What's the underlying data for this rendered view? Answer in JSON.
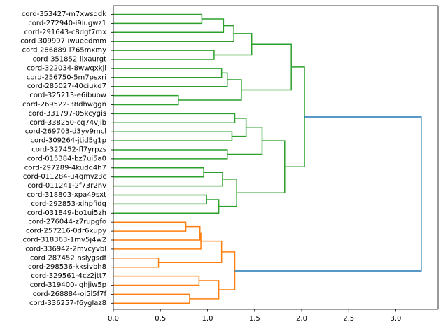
{
  "chart_data": {
    "type": "dendrogram",
    "orientation": "right",
    "title": "",
    "xlabel": "",
    "ylabel": "",
    "xlim": [
      0,
      3.45
    ],
    "xticks": [
      0.0,
      0.5,
      1.0,
      1.5,
      2.0,
      2.5,
      3.0
    ],
    "xtick_labels": [
      "0.0",
      "0.5",
      "1.0",
      "1.5",
      "2.0",
      "2.5",
      "3.0"
    ],
    "colors": {
      "green": "#2ca02c",
      "orange": "#ff7f0e",
      "blue": "#1f77b4"
    },
    "leaves": [
      "cord-353427-m7xwsqdk",
      "cord-272940-i9iugwz1",
      "cord-291643-c8dgf7mx",
      "cord-309997-iwueedmm",
      "cord-286889-l765mxmy",
      "cord-351852-ilxaurgt",
      "cord-322034-8wwqxkjl",
      "cord-256750-5m7psxri",
      "cord-285027-40ciukd7",
      "cord-325213-e6ibuow",
      "cord-269522-38dhwggn",
      "cord-331797-05kcygis",
      "cord-338250-cq74vjib",
      "cord-269703-d3yv9mcl",
      "cord-309264-jtid5g1p",
      "cord-327452-fl7yrpzs",
      "cord-015384-bz7ui5a0",
      "cord-297289-4kudq4h7",
      "cord-011284-u4qmvz3c",
      "cord-011241-2f73r2nv",
      "cord-318803-xpa49sxt",
      "cord-292853-xihpfidg",
      "cord-031849-bo1ui5zh",
      "cord-276044-z7rupgfo",
      "cord-257216-0dr6xupy",
      "cord-318363-1mv5j4w2",
      "cord-336942-2mvcyvbl",
      "cord-287452-nslygsdf",
      "cord-298536-kksivbh8",
      "cord-329561-4cz2jtt7",
      "cord-319400-lghjiw5p",
      "cord-268884-oi5l5f7f",
      "cord-336257-f6yglaz8"
    ],
    "merges": [
      {
        "id": "n1",
        "children": [
          "cord-353427-m7xwsqdk",
          "cord-272940-i9iugwz1"
        ],
        "height": 0.94,
        "color": "green"
      },
      {
        "id": "n2",
        "children": [
          "n1",
          "cord-291643-c8dgf7mx"
        ],
        "height": 1.17,
        "color": "green"
      },
      {
        "id": "n3",
        "children": [
          "n2",
          "cord-309997-iwueedmm"
        ],
        "height": 1.28,
        "color": "green"
      },
      {
        "id": "n4",
        "children": [
          "cord-286889-l765mxmy",
          "cord-351852-ilxaurgt"
        ],
        "height": 1.07,
        "color": "green"
      },
      {
        "id": "n5",
        "children": [
          "n3",
          "n4"
        ],
        "height": 1.47,
        "color": "green"
      },
      {
        "id": "n6",
        "children": [
          "cord-322034-8wwqxkjl",
          "cord-256750-5m7psxri"
        ],
        "height": 1.15,
        "color": "green"
      },
      {
        "id": "n7",
        "children": [
          "n6",
          "cord-285027-40ciukd7"
        ],
        "height": 1.21,
        "color": "green"
      },
      {
        "id": "n8",
        "children": [
          "cord-325213-e6ibuow",
          "cord-269522-38dhwggn"
        ],
        "height": 0.69,
        "color": "green"
      },
      {
        "id": "n9",
        "children": [
          "n7",
          "n8"
        ],
        "height": 1.36,
        "color": "green"
      },
      {
        "id": "n10",
        "children": [
          "n5",
          "n9"
        ],
        "height": 1.89,
        "color": "green"
      },
      {
        "id": "n11",
        "children": [
          "cord-331797-05kcygis",
          "cord-338250-cq74vjib"
        ],
        "height": 1.29,
        "color": "green"
      },
      {
        "id": "n12",
        "children": [
          "cord-269703-d3yv9mcl",
          "cord-309264-jtid5g1p"
        ],
        "height": 1.26,
        "color": "green"
      },
      {
        "id": "n13",
        "children": [
          "n11",
          "n12"
        ],
        "height": 1.41,
        "color": "green"
      },
      {
        "id": "n14",
        "children": [
          "cord-327452-fl7yrpzs",
          "cord-015384-bz7ui5a0"
        ],
        "height": 1.21,
        "color": "green"
      },
      {
        "id": "n15",
        "children": [
          "n13",
          "n14"
        ],
        "height": 1.58,
        "color": "green"
      },
      {
        "id": "n16",
        "children": [
          "cord-297289-4kudq4h7",
          "cord-011284-u4qmvz3c"
        ],
        "height": 0.96,
        "color": "green"
      },
      {
        "id": "n17",
        "children": [
          "n16",
          "cord-011241-2f73r2nv"
        ],
        "height": 1.16,
        "color": "green"
      },
      {
        "id": "n18",
        "children": [
          "cord-318803-xpa49sxt",
          "cord-292853-xihpfidg"
        ],
        "height": 0.99,
        "color": "green"
      },
      {
        "id": "n19",
        "children": [
          "n18",
          "cord-031849-bo1ui5zh"
        ],
        "height": 1.12,
        "color": "green"
      },
      {
        "id": "n20",
        "children": [
          "n17",
          "n19"
        ],
        "height": 1.31,
        "color": "green"
      },
      {
        "id": "n21",
        "children": [
          "n15",
          "n20"
        ],
        "height": 1.82,
        "color": "green"
      },
      {
        "id": "n22",
        "children": [
          "n10",
          "n21"
        ],
        "height": 2.03,
        "color": "green"
      },
      {
        "id": "n23",
        "children": [
          "cord-276044-z7rupgfo",
          "cord-257216-0dr6xupy"
        ],
        "height": 0.77,
        "color": "orange"
      },
      {
        "id": "n24",
        "children": [
          "n23",
          "cord-318363-1mv5j4w2"
        ],
        "height": 0.92,
        "color": "orange"
      },
      {
        "id": "n25",
        "children": [
          "n24",
          "cord-336942-2mvcyvbl"
        ],
        "height": 0.93,
        "color": "orange"
      },
      {
        "id": "n26",
        "children": [
          "cord-287452-nslygsdf",
          "cord-298536-kksivbh8"
        ],
        "height": 0.48,
        "color": "orange"
      },
      {
        "id": "n27",
        "children": [
          "n25",
          "n26"
        ],
        "height": 1.15,
        "color": "orange"
      },
      {
        "id": "n28",
        "children": [
          "cord-329561-4cz2jtt7",
          "cord-319400-lghjiw5p"
        ],
        "height": 0.91,
        "color": "orange"
      },
      {
        "id": "n29",
        "children": [
          "cord-268884-oi5l5f7f",
          "cord-336257-f6yglaz8"
        ],
        "height": 0.81,
        "color": "orange"
      },
      {
        "id": "n30",
        "children": [
          "n28",
          "n29"
        ],
        "height": 1.12,
        "color": "orange"
      },
      {
        "id": "n31",
        "children": [
          "n27",
          "n30"
        ],
        "height": 1.29,
        "color": "orange"
      },
      {
        "id": "n32",
        "children": [
          "n22",
          "n31"
        ],
        "height": 3.27,
        "color": "blue"
      }
    ]
  }
}
